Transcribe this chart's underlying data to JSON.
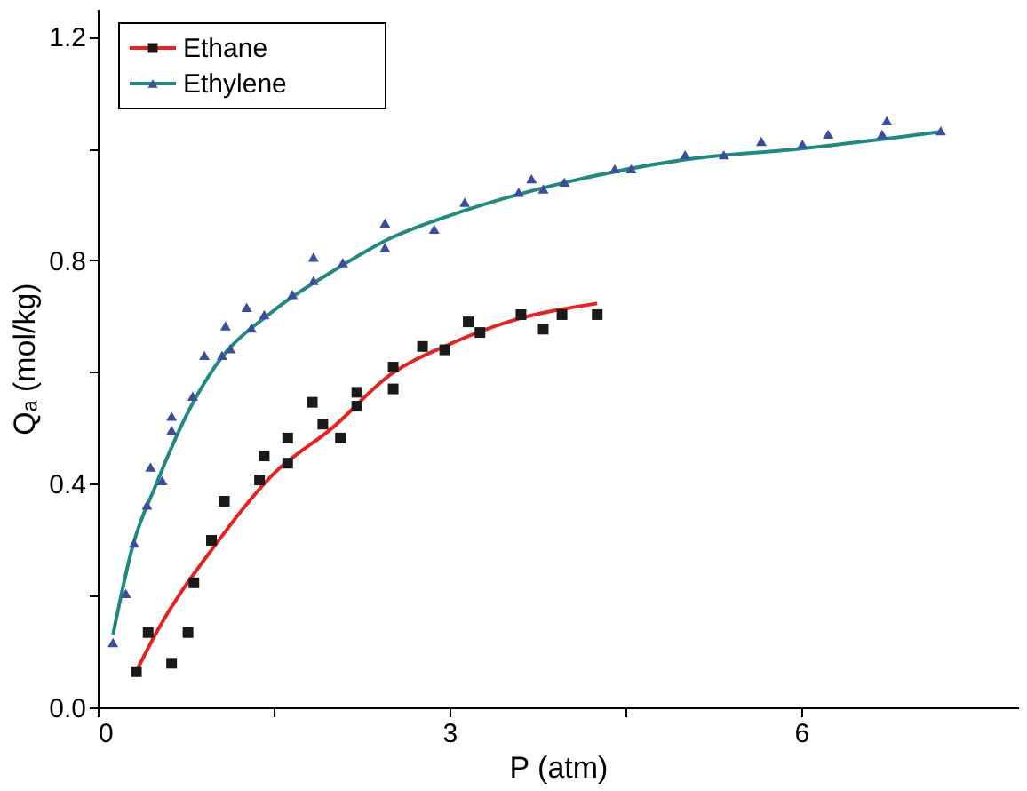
{
  "chart_data": {
    "type": "scatter",
    "xlabel": "P (atm)",
    "ylabel": "Qₐ (mol/kg)",
    "xlim": [
      0,
      7.85
    ],
    "ylim": [
      0,
      1.25
    ],
    "xticks": [
      0,
      {
        "value": 1.5,
        "label": null
      },
      3,
      {
        "value": 4.5,
        "label": null
      },
      6
    ],
    "yticks": [
      {
        "value": 0,
        "label": "0.0"
      },
      {
        "value": 0.2,
        "label": null
      },
      0.4,
      {
        "value": 0.6,
        "label": null
      },
      0.8,
      {
        "value": 1.0,
        "label": null
      },
      1.2
    ],
    "grid": false,
    "legend": "top left",
    "series": [
      {
        "name": "Ethane",
        "marker": "square",
        "color": "#1a1a1a",
        "x": [
          0.33,
          0.43,
          0.63,
          0.77,
          0.82,
          0.97,
          1.08,
          1.38,
          1.42,
          1.62,
          1.62,
          1.83,
          1.92,
          2.07,
          2.21,
          2.21,
          2.52,
          2.52,
          2.77,
          2.96,
          3.16,
          3.26,
          3.61,
          3.8,
          3.96,
          4.26
        ],
        "values": [
          0.064,
          0.134,
          0.079,
          0.134,
          0.223,
          0.299,
          0.369,
          0.407,
          0.45,
          0.437,
          0.482,
          0.546,
          0.507,
          0.482,
          0.564,
          0.539,
          0.609,
          0.57,
          0.646,
          0.64,
          0.69,
          0.671,
          0.703,
          0.677,
          0.703,
          0.703
        ]
      },
      {
        "type": "line",
        "color": "#e8221f",
        "x": [
          0.33,
          0.5,
          1.0,
          1.5,
          2.0,
          2.5,
          3.0,
          3.5,
          4.26
        ],
        "values": [
          0.065,
          0.134,
          0.29,
          0.418,
          0.5,
          0.596,
          0.65,
          0.69,
          0.723
        ]
      },
      {
        "name": "Ethylene",
        "marker": "triangle",
        "color": "#3b4da0",
        "x": [
          0.13,
          0.24,
          0.31,
          0.42,
          0.45,
          0.55,
          0.63,
          0.63,
          0.81,
          0.91,
          1.06,
          1.09,
          1.13,
          1.27,
          1.31,
          1.42,
          1.66,
          1.84,
          1.84,
          2.09,
          2.45,
          2.45,
          2.87,
          3.13,
          3.59,
          3.7,
          3.8,
          3.98,
          4.41,
          4.55,
          5.01,
          5.34,
          5.66,
          6.01,
          6.23,
          6.69,
          6.73,
          7.19
        ],
        "values": [
          0.116,
          0.204,
          0.294,
          0.362,
          0.43,
          0.406,
          0.496,
          0.521,
          0.557,
          0.63,
          0.63,
          0.683,
          0.642,
          0.716,
          0.679,
          0.703,
          0.739,
          0.764,
          0.806,
          0.796,
          0.823,
          0.867,
          0.856,
          0.904,
          0.922,
          0.946,
          0.928,
          0.94,
          0.964,
          0.964,
          0.989,
          0.989,
          1.013,
          1.008,
          1.026,
          1.026,
          1.05,
          1.032
        ]
      },
      {
        "type": "line",
        "color": "#1f8a80",
        "x": [
          0.13,
          0.3,
          0.5,
          0.75,
          1.0,
          1.5,
          2.0,
          2.5,
          3.0,
          4.0,
          5.0,
          6.0,
          7.19
        ],
        "values": [
          0.13,
          0.29,
          0.4,
          0.52,
          0.61,
          0.71,
          0.78,
          0.84,
          0.88,
          0.94,
          0.98,
          1.0,
          1.03
        ]
      }
    ]
  }
}
